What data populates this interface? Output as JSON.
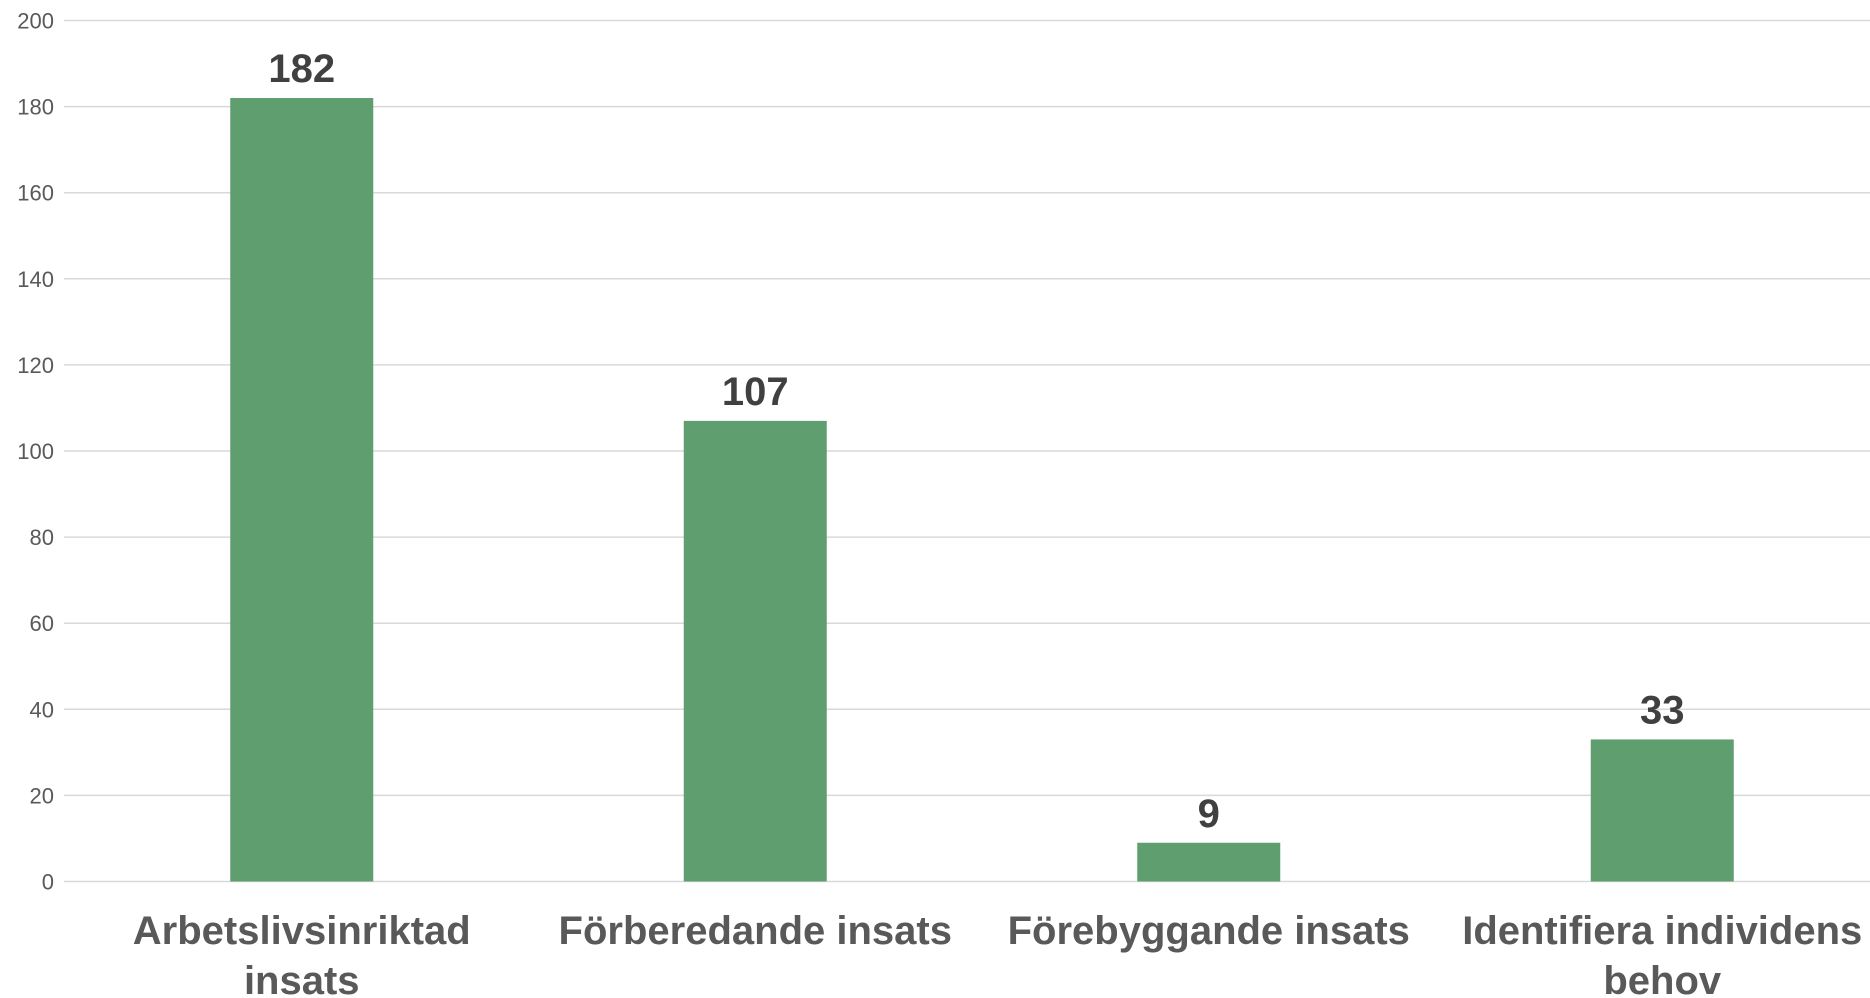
{
  "chart_data": {
    "type": "bar",
    "title": "",
    "xlabel": "",
    "ylabel": "",
    "categories": [
      [
        "Arbetslivsinriktad",
        "insats"
      ],
      [
        "Förberedande insats"
      ],
      [
        "Förebyggande insats"
      ],
      [
        "Identifiera individens",
        "behov"
      ]
    ],
    "values": [
      182,
      107,
      9,
      33
    ],
    "data_labels": [
      "182",
      "107",
      "9",
      "33"
    ],
    "ylim": [
      0,
      200
    ],
    "yticks": [
      0,
      20,
      40,
      60,
      80,
      100,
      120,
      140,
      160,
      180,
      200
    ],
    "ytick_labels": [
      "0",
      "20",
      "40",
      "60",
      "80",
      "100",
      "120",
      "140",
      "160",
      "180",
      "200"
    ],
    "grid": true,
    "legend": "none",
    "colors": {
      "bar": "#5f9e6e",
      "grid": "#d9d9d9",
      "tick_text": "#595959",
      "data_label_text": "#404040",
      "category_text": "#595959"
    }
  }
}
